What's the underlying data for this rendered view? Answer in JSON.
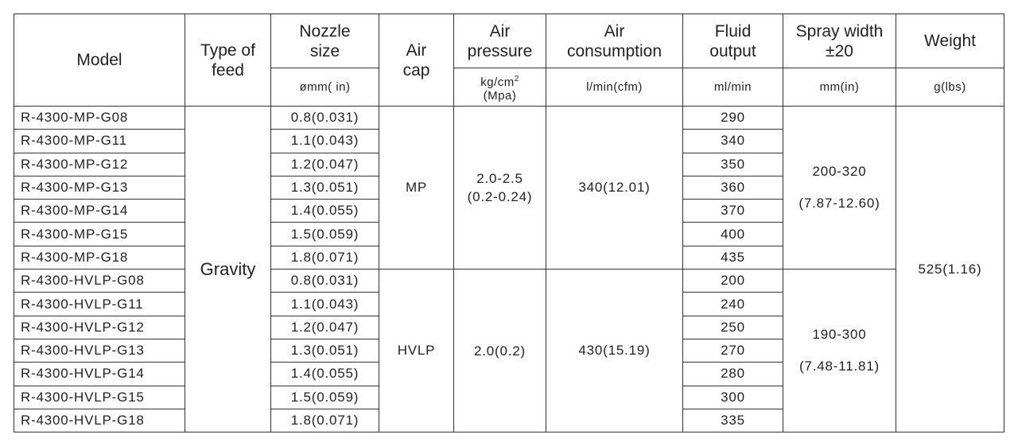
{
  "header": {
    "columns": [
      {
        "title": [
          "Model"
        ]
      },
      {
        "title": [
          "Type of",
          "feed"
        ]
      },
      {
        "title": [
          "Nozzle",
          "size"
        ],
        "unit": [
          "ømm( in)"
        ]
      },
      {
        "title": [
          "Air",
          "cap"
        ]
      },
      {
        "title": [
          "Air",
          "pressure"
        ],
        "unit": {
          "text": "kg/cm",
          "sup": "2",
          "line2": "(Mpa)"
        }
      },
      {
        "title": [
          "Air",
          "consumption"
        ],
        "unit": [
          "l/min(cfm)"
        ]
      },
      {
        "title": [
          "Fluid",
          "output"
        ],
        "unit": [
          "ml/min"
        ]
      },
      {
        "title": [
          "Spray width",
          "±20"
        ],
        "unit": [
          "mm(in)"
        ]
      },
      {
        "title": [
          "Weight"
        ],
        "unit": [
          "g(lbs)"
        ]
      }
    ]
  },
  "type_of_feed": "Gravity",
  "weight": "525(1.16)",
  "groups": [
    {
      "air_cap": "MP",
      "air_pressure": [
        "2.0-2.5",
        "(0.2-0.24)"
      ],
      "air_consumption": "340(12.01)",
      "spray_width": [
        "200-320",
        "(7.87-12.60)"
      ],
      "rows": [
        {
          "model": "R-4300-MP-G08",
          "nozzle": "0.8(0.031)",
          "fluid": "290"
        },
        {
          "model": "R-4300-MP-G11",
          "nozzle": "1.1(0.043)",
          "fluid": "340"
        },
        {
          "model": "R-4300-MP-G12",
          "nozzle": "1.2(0.047)",
          "fluid": "350"
        },
        {
          "model": "R-4300-MP-G13",
          "nozzle": "1.3(0.051)",
          "fluid": "360"
        },
        {
          "model": "R-4300-MP-G14",
          "nozzle": "1.4(0.055)",
          "fluid": "370"
        },
        {
          "model": "R-4300-MP-G15",
          "nozzle": "1.5(0.059)",
          "fluid": "400"
        },
        {
          "model": "R-4300-MP-G18",
          "nozzle": "1.8(0.071)",
          "fluid": "435"
        }
      ]
    },
    {
      "air_cap": "HVLP",
      "air_pressure": [
        "2.0(0.2)"
      ],
      "air_consumption": "430(15.19)",
      "spray_width": [
        "190-300",
        "(7.48-11.81)"
      ],
      "rows": [
        {
          "model": "R-4300-HVLP-G08",
          "nozzle": "0.8(0.031)",
          "fluid": "200"
        },
        {
          "model": "R-4300-HVLP-G11",
          "nozzle": "1.1(0.043)",
          "fluid": "240"
        },
        {
          "model": "R-4300-HVLP-G12",
          "nozzle": "1.2(0.047)",
          "fluid": "250"
        },
        {
          "model": "R-4300-HVLP-G13",
          "nozzle": "1.3(0.051)",
          "fluid": "270"
        },
        {
          "model": "R-4300-HVLP-G14",
          "nozzle": "1.4(0.055)",
          "fluid": "280"
        },
        {
          "model": "R-4300-HVLP-G15",
          "nozzle": "1.5(0.059)",
          "fluid": "300"
        },
        {
          "model": "R-4300-HVLP-G18",
          "nozzle": "1.8(0.071)",
          "fluid": "335"
        }
      ]
    }
  ]
}
